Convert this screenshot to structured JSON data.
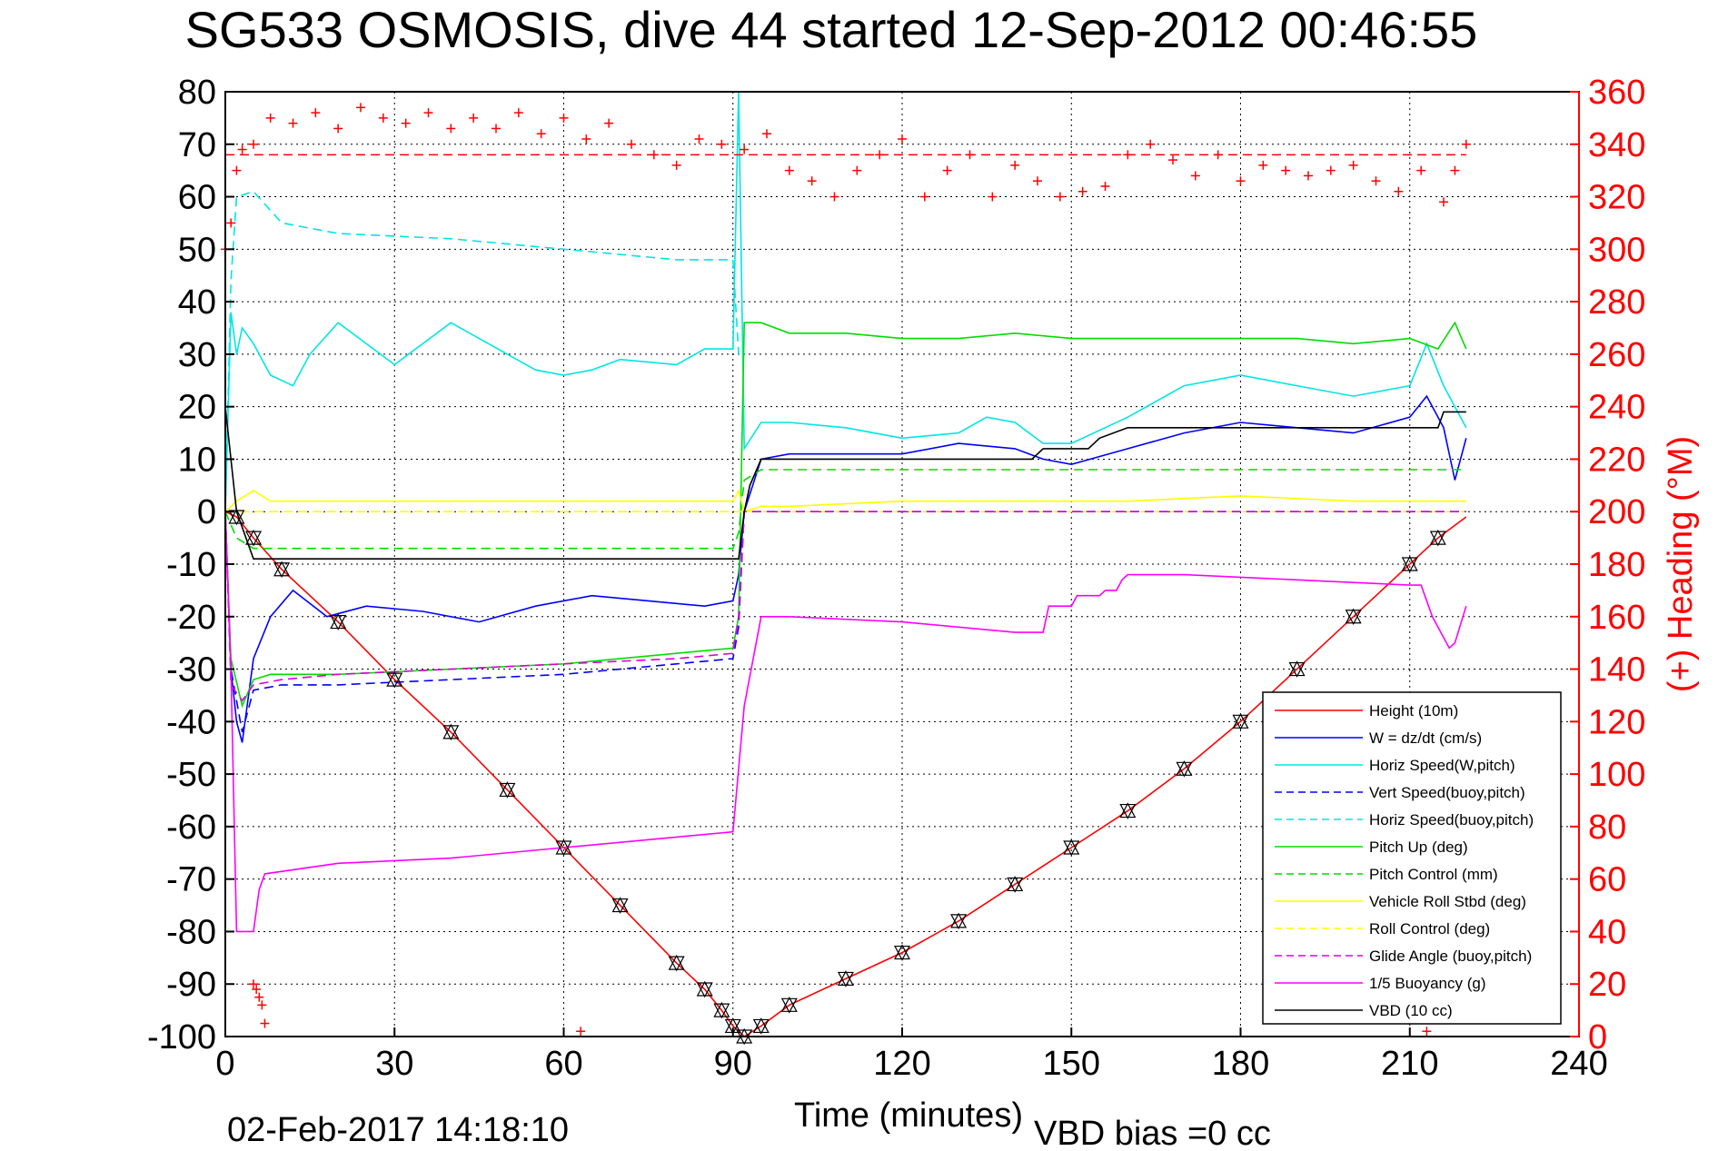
{
  "chart_data": {
    "type": "line",
    "title": "SG533 OSMOSIS, dive 44 started 12-Sep-2012 00:46:55",
    "xlabel": "Time (minutes)",
    "ylabel_right": "(+) Heading (°M)",
    "footer_date": "02-Feb-2017 14:18:10",
    "footer_bias": "VBD bias =0 cc",
    "xlim": [
      0,
      240
    ],
    "ylim_left": [
      -100,
      80
    ],
    "ylim_right": [
      0,
      360
    ],
    "xticks": [
      0,
      30,
      60,
      90,
      120,
      150,
      180,
      210,
      240
    ],
    "yticks_left": [
      80,
      70,
      60,
      50,
      40,
      30,
      20,
      10,
      0,
      -10,
      -20,
      -30,
      -40,
      -50,
      -60,
      -70,
      -80,
      -90,
      -100
    ],
    "yticks_right": [
      360,
      340,
      320,
      300,
      280,
      260,
      240,
      220,
      200,
      180,
      160,
      140,
      120,
      100,
      80,
      60,
      40,
      20,
      0
    ],
    "grid": true,
    "legend_position": "bottom-right",
    "right_axis_color": "#ff0000",
    "heading_reference": 336,
    "series": [
      {
        "name": "Height (10m)",
        "color": "#ff0000",
        "dash": "solid",
        "x": [
          0,
          2,
          5,
          10,
          20,
          30,
          40,
          50,
          60,
          70,
          80,
          85,
          88,
          90,
          92,
          95,
          100,
          110,
          120,
          130,
          140,
          150,
          160,
          170,
          180,
          190,
          200,
          210,
          215,
          220
        ],
        "y": [
          0,
          -1,
          -5,
          -11,
          -21,
          -32,
          -42,
          -53,
          -64,
          -75,
          -86,
          -91,
          -95,
          -98,
          -100,
          -98,
          -94,
          -89,
          -84,
          -78,
          -71,
          -64,
          -57,
          -49,
          -40,
          -30,
          -20,
          -10,
          -5,
          -1
        ]
      },
      {
        "name": "W = dz/dt (cm/s)",
        "color": "#0000ff",
        "dash": "solid",
        "x": [
          0,
          1,
          2,
          3,
          5,
          8,
          12,
          18,
          25,
          35,
          45,
          55,
          65,
          75,
          85,
          90,
          91,
          92,
          95,
          100,
          110,
          120,
          130,
          140,
          145,
          150,
          160,
          170,
          180,
          190,
          200,
          210,
          213,
          216,
          218,
          220
        ],
        "y": [
          0,
          -30,
          -40,
          -44,
          -28,
          -20,
          -15,
          -20,
          -18,
          -19,
          -21,
          -18,
          -16,
          -17,
          -18,
          -17,
          -12,
          0,
          10,
          11,
          11,
          11,
          13,
          12,
          10,
          9,
          12,
          15,
          17,
          16,
          15,
          18,
          22,
          16,
          6,
          14
        ]
      },
      {
        "name": "Horiz Speed(W,pitch)",
        "color": "#00e5e5",
        "dash": "solid",
        "x": [
          0,
          1,
          2,
          3,
          5,
          8,
          12,
          15,
          20,
          30,
          40,
          50,
          55,
          60,
          65,
          70,
          80,
          85,
          90,
          91,
          92,
          95,
          100,
          110,
          120,
          130,
          135,
          140,
          145,
          150,
          160,
          170,
          180,
          190,
          200,
          210,
          213,
          216,
          218,
          220
        ],
        "y": [
          0,
          38,
          30,
          35,
          32,
          26,
          24,
          30,
          36,
          28,
          36,
          30,
          27,
          26,
          27,
          29,
          28,
          31,
          31,
          80,
          12,
          17,
          17,
          16,
          14,
          15,
          18,
          17,
          13,
          13,
          18,
          24,
          26,
          24,
          22,
          24,
          32,
          24,
          20,
          16
        ]
      },
      {
        "name": "Vert Speed(buoy,pitch)",
        "color": "#0000ff",
        "dash": "dashed",
        "x": [
          0,
          1,
          3,
          5,
          10,
          20,
          40,
          60,
          80,
          90,
          91,
          92,
          95,
          100,
          200,
          220
        ],
        "y": [
          0,
          -30,
          -42,
          -34,
          -33,
          -33,
          -32,
          -31,
          -29,
          -28,
          -22,
          0,
          0,
          0,
          0,
          0
        ]
      },
      {
        "name": "Horiz Speed(buoy,pitch)",
        "color": "#00e5e5",
        "dash": "dashed",
        "x": [
          0,
          1,
          2,
          5,
          10,
          20,
          40,
          60,
          80,
          90,
          91
        ],
        "y": [
          0,
          44,
          60,
          61,
          55,
          53,
          52,
          50,
          48,
          48,
          30
        ]
      },
      {
        "name": "Pitch Up (deg)",
        "color": "#00dd00",
        "dash": "solid",
        "x": [
          0,
          1,
          3,
          5,
          8,
          20,
          40,
          60,
          80,
          90,
          91,
          92,
          95,
          100,
          110,
          120,
          130,
          140,
          150,
          160,
          170,
          180,
          190,
          200,
          210,
          215,
          218,
          220
        ],
        "y": [
          0,
          -28,
          -37,
          -32,
          -31,
          -31,
          -30,
          -29,
          -27,
          -26,
          -20,
          36,
          36,
          34,
          34,
          33,
          33,
          34,
          33,
          33,
          33,
          33,
          33,
          32,
          33,
          31,
          36,
          31
        ]
      },
      {
        "name": "Pitch Control (mm)",
        "color": "#00dd00",
        "dash": "dashed",
        "x": [
          0,
          2,
          5,
          10,
          90,
          91,
          92,
          95,
          220
        ],
        "y": [
          0,
          -5,
          -7,
          -7,
          -7,
          -4,
          6,
          8,
          8
        ]
      },
      {
        "name": "Vehicle Roll Stbd (deg)",
        "color": "#ffff00",
        "dash": "solid",
        "x": [
          0,
          2,
          5,
          8,
          20,
          40,
          60,
          80,
          90,
          91,
          92,
          95,
          100,
          120,
          140,
          160,
          180,
          200,
          220
        ],
        "y": [
          0,
          2,
          4,
          2,
          2,
          2,
          2,
          2,
          2,
          4,
          0,
          1,
          1,
          2,
          2,
          2,
          3,
          2,
          2
        ]
      },
      {
        "name": "Roll Control (deg)",
        "color": "#ffff00",
        "dash": "dashed",
        "x": [
          0,
          5,
          90,
          91,
          92,
          220
        ],
        "y": [
          0,
          0,
          0,
          0,
          0,
          0
        ]
      },
      {
        "name": "Glide Angle (buoy,pitch)",
        "color": "#dd00dd",
        "dash": "dashed",
        "x": [
          0,
          1,
          3,
          5,
          10,
          20,
          40,
          60,
          80,
          90,
          91,
          92,
          95,
          220
        ],
        "y": [
          0,
          -33,
          -36,
          -33,
          -32,
          -31,
          -30,
          -29,
          -28,
          -27,
          -20,
          0,
          0,
          0
        ]
      },
      {
        "name": "1/5 Buoyancy (g)",
        "color": "#ff00ff",
        "dash": "solid",
        "x": [
          0,
          1,
          2,
          5,
          6,
          7,
          20,
          40,
          60,
          80,
          90,
          91,
          92,
          95,
          100,
          120,
          130,
          140,
          145,
          146,
          150,
          151,
          155,
          156,
          158,
          159,
          160,
          170,
          180,
          190,
          200,
          210,
          212,
          214,
          217,
          218,
          220
        ],
        "y": [
          0,
          -30,
          -80,
          -80,
          -72,
          -69,
          -67,
          -66,
          -64,
          -62,
          -61,
          -49,
          -37,
          -20,
          -20,
          -21,
          -22,
          -23,
          -23,
          -18,
          -18,
          -16,
          -16,
          -15,
          -15,
          -13,
          -12,
          -12,
          -12.5,
          -13,
          -13.5,
          -14,
          -14,
          -20,
          -26,
          -25,
          -18
        ]
      },
      {
        "name": "VBD (10 cc)",
        "color": "#000000",
        "dash": "solid",
        "x": [
          0,
          1,
          2,
          5,
          90,
          91,
          92,
          93,
          95,
          100,
          140,
          143,
          145,
          150,
          153,
          155,
          160,
          175,
          176,
          215,
          216,
          220
        ],
        "y": [
          20,
          10,
          0,
          -9,
          -9,
          -9,
          0,
          5,
          10,
          10,
          10,
          10,
          12,
          12,
          12,
          14,
          16,
          16,
          16,
          16,
          19,
          19
        ]
      }
    ],
    "heading_series": {
      "name": "(+) Heading (°M)",
      "color": "#ff0000",
      "marker": "+",
      "x": [
        0,
        1,
        2,
        3,
        5,
        8,
        12,
        16,
        20,
        24,
        28,
        32,
        36,
        40,
        44,
        48,
        52,
        56,
        60,
        64,
        68,
        72,
        76,
        80,
        84,
        88,
        92,
        96,
        100,
        104,
        108,
        112,
        116,
        120,
        124,
        128,
        132,
        136,
        140,
        144,
        148,
        152,
        156,
        160,
        164,
        168,
        172,
        176,
        180,
        184,
        188,
        192,
        196,
        200,
        204,
        208,
        212,
        216,
        218,
        220
      ],
      "y": [
        300,
        310,
        330,
        338,
        340,
        350,
        348,
        352,
        346,
        354,
        350,
        348,
        352,
        346,
        350,
        346,
        352,
        344,
        350,
        342,
        348,
        340,
        336,
        332,
        342,
        340,
        338,
        344,
        330,
        326,
        320,
        330,
        336,
        342,
        320,
        330,
        336,
        320,
        332,
        326,
        320,
        322,
        324,
        336,
        340,
        334,
        328,
        336,
        326,
        332,
        330,
        328,
        330,
        332,
        326,
        322,
        330,
        318,
        330,
        340
      ],
      "outliers_x": [
        5,
        5.5,
        6,
        6.5,
        7,
        63,
        213
      ],
      "outliers_y": [
        20,
        18,
        15,
        12,
        5,
        2,
        2
      ]
    }
  }
}
